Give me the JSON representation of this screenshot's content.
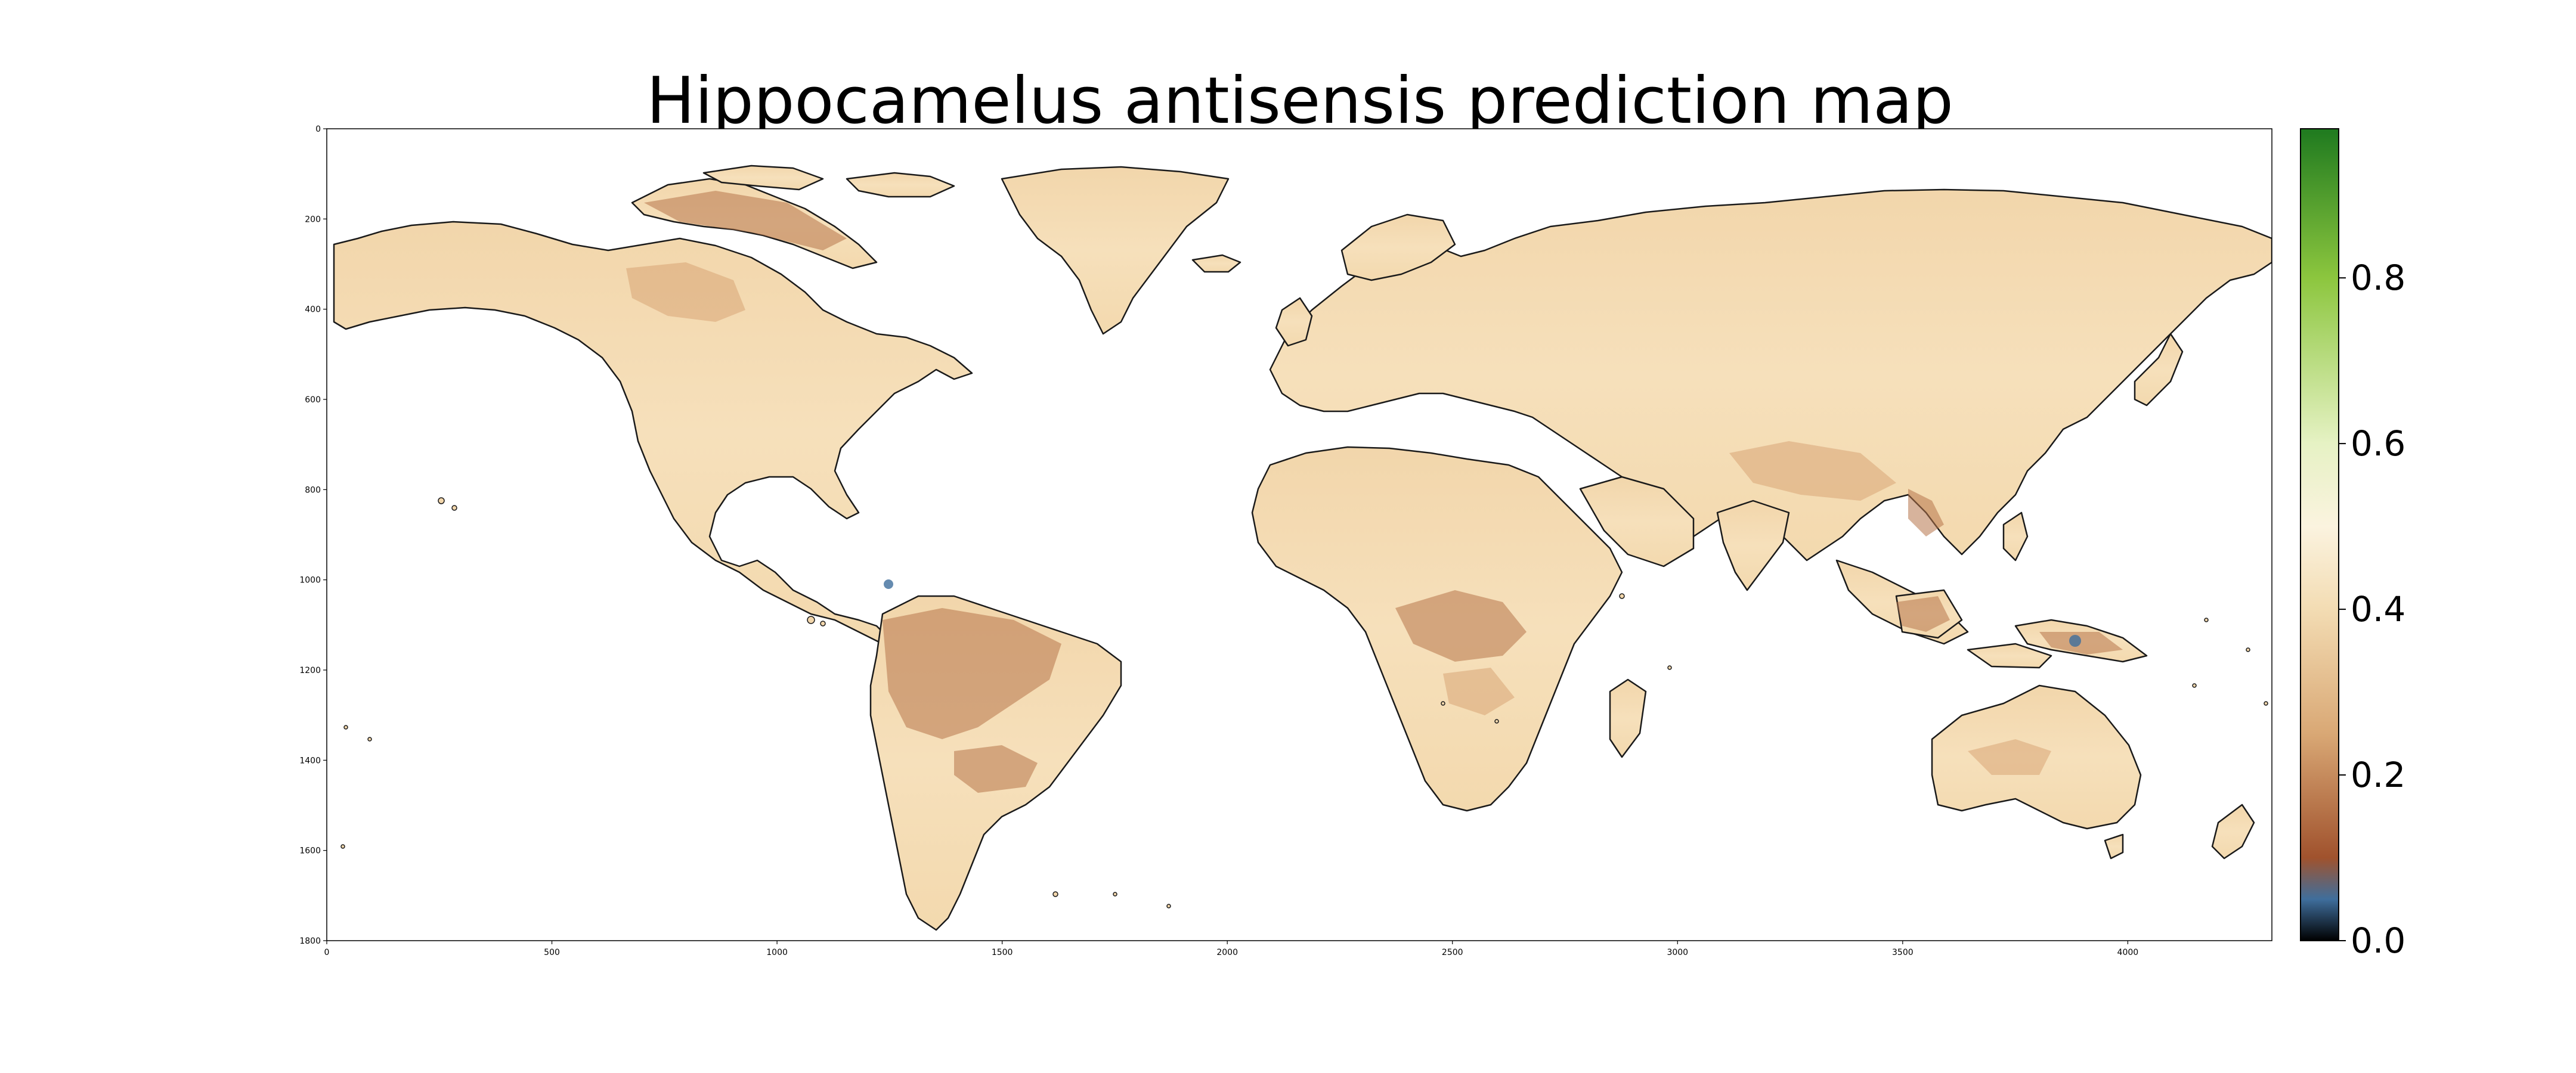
{
  "chart_data": {
    "type": "heatmap",
    "title": "Hippocamelus antisensis prediction map",
    "x_ticks": [
      0,
      500,
      1000,
      1500,
      2000,
      2500,
      3000,
      3500,
      4000
    ],
    "y_ticks": [
      0,
      200,
      400,
      600,
      800,
      1000,
      1200,
      1400,
      1600,
      1800
    ],
    "xlim": [
      0,
      4320
    ],
    "ylim": [
      1800,
      0
    ],
    "colorbar": {
      "ticks": [
        0.0,
        0.2,
        0.4,
        0.6,
        0.8
      ],
      "tick_labels": [
        "0.0",
        "0.2",
        "0.4",
        "0.6",
        "0.8"
      ],
      "range": [
        0.0,
        0.98
      ],
      "colormap_stops": [
        {
          "value": 0.0,
          "color": "#000000"
        },
        {
          "value": 0.05,
          "color": "#3f6e9c"
        },
        {
          "value": 0.1,
          "color": "#a0522d"
        },
        {
          "value": 0.25,
          "color": "#d9a875"
        },
        {
          "value": 0.4,
          "color": "#f3dcb3"
        },
        {
          "value": 0.5,
          "color": "#fbf3df"
        },
        {
          "value": 0.6,
          "color": "#e6f2c4"
        },
        {
          "value": 0.8,
          "color": "#8cc63e"
        },
        {
          "value": 0.98,
          "color": "#1f7a1f"
        }
      ]
    },
    "land_colors": {
      "typical": "#f5ddb5",
      "low": "#b8703f",
      "very_low": "#3f6e9c"
    }
  }
}
